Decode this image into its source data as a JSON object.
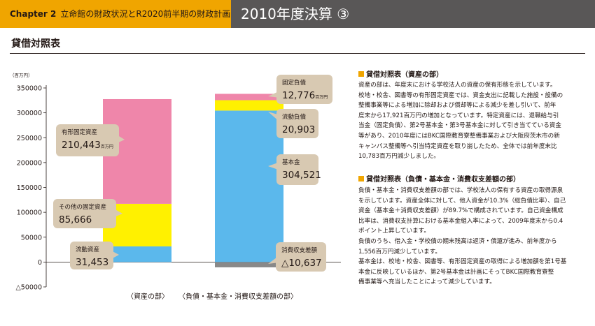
{
  "header": {
    "chapter": "Chapter 2",
    "subtitle": "立命館の財政状況とR2020前半期の財政計画",
    "title": "2010年度決算 ③"
  },
  "section_title": "貸借対照表",
  "chart_data": {
    "type": "bar",
    "stacked": true,
    "unit_label": "（百万円）",
    "ylim": [
      -50000,
      350000
    ],
    "yticks": [
      -50000,
      0,
      50000,
      100000,
      150000,
      200000,
      250000,
      300000,
      350000
    ],
    "ytick_labels": [
      "△50000",
      "0",
      "50000",
      "100000",
      "150000",
      "200000",
      "250000",
      "300000",
      "350000"
    ],
    "grid": false,
    "categories": [
      "〈資産の部〉",
      "〈負債・基本金・消費収支差額の部〉"
    ],
    "bars": [
      {
        "segments": [
          {
            "name": "流動資産",
            "value": 31453,
            "label": "31,453",
            "unit": "",
            "color": "#5bb8ec"
          },
          {
            "name": "その他の固定資産",
            "value": 85666,
            "label": "85,666",
            "unit": "",
            "color": "#fff100"
          },
          {
            "name": "有形固定資産",
            "value": 210443,
            "label": "210,443",
            "unit": "百万円",
            "color": "#ef86aa"
          }
        ]
      },
      {
        "segments": [
          {
            "name": "消費収支差額",
            "value": -10637,
            "label": "△10,637",
            "unit": "",
            "color": "#898989"
          },
          {
            "name": "基本金",
            "value": 304521,
            "label": "304,521",
            "unit": "",
            "color": "#5bb8ec"
          },
          {
            "name": "流動負債",
            "value": 20903,
            "label": "20,903",
            "unit": "",
            "color": "#fff100"
          },
          {
            "name": "固定負債",
            "value": 12776,
            "label": "12,776",
            "unit": "百万円",
            "color": "#ef86aa"
          }
        ]
      }
    ]
  },
  "right_panel": {
    "section1": {
      "heading": "貸借対照表（資産の部）",
      "lines": [
        "資産の部は、年度末における学校法人の資産の保有形態を示しています。",
        "校地・校舎、図書等の有形固定資産では、資金支出に記載した施設・設備の",
        "整備事業等による増加に除却および償却等による減少を差し引いて、前年",
        "度末から17,921百万円の増加となっています。特定資産には、退職給与引",
        "当金（固定負債）、第2号基本金・第3号基本金に対して引き当てている資金",
        "等があり、2010年度にはBKC国際教育寮整備事業および大阪府茨木市の新",
        "キャンパス整備等へ引当特定資産を取り崩したため、全体では前年度末比",
        "10,783百万円減少しました。"
      ]
    },
    "section2": {
      "heading": "貸借対照表（負債・基本金・消費収支差額の部）",
      "lines": [
        "負債・基本金・消費収支差額の部では、学校法人の保有する資産の取得源泉",
        "を示しています。資産全体に対して、他人資金が10.3%（総負債比率）、自己",
        "資金（基本金＋消費収支差額）が89.7%で構成されています。自己資金構成",
        "比率は、消費収支計算における基本金組入率によって、2009年度末から0.4",
        "ポイント上昇しています。",
        "負債のうち、借入金・学校債の期末残高は返済・償還が進み、前年度から",
        "1,556百万円減少しています。",
        "基本金は、校地・校舎、図書等、有形固定資産の取得による増加額を第1号基",
        "本金に反映しているほか、第2号基本金は計画にそってBKC国際教育寮整",
        "備事業等へ充当したことによって減少しています。"
      ]
    }
  }
}
